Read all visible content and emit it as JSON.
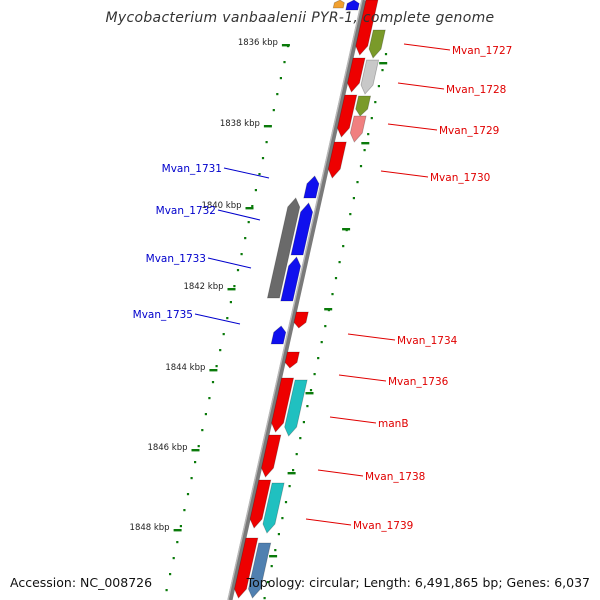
{
  "title": "Mycobacterium vanbaalenii PYR-1, complete genome",
  "accession_text": "Accession: NC_008726",
  "summary_text": "Topology: circular; Length: 6,491,865 bp; Genes: 6,037",
  "colors": {
    "forward_label": "#e00000",
    "reverse_label": "#0000cc",
    "backbone": "#8c8c8c",
    "tick": "#0a7a0a"
  },
  "scale_labels": [
    "1836 kbp",
    "1838 kbp",
    "1840 kbp",
    "1842 kbp",
    "1844 kbp",
    "1846 kbp",
    "1848 kbp"
  ],
  "forward_gene_labels": [
    "Mvan_1727",
    "Mvan_1728",
    "Mvan_1729",
    "Mvan_1730",
    "Mvan_1734",
    "Mvan_1736",
    "manB",
    "Mvan_1738",
    "Mvan_1739"
  ],
  "reverse_gene_labels": [
    "Mvan_1731",
    "Mvan_1732",
    "Mvan_1733",
    "Mvan_1735"
  ]
}
